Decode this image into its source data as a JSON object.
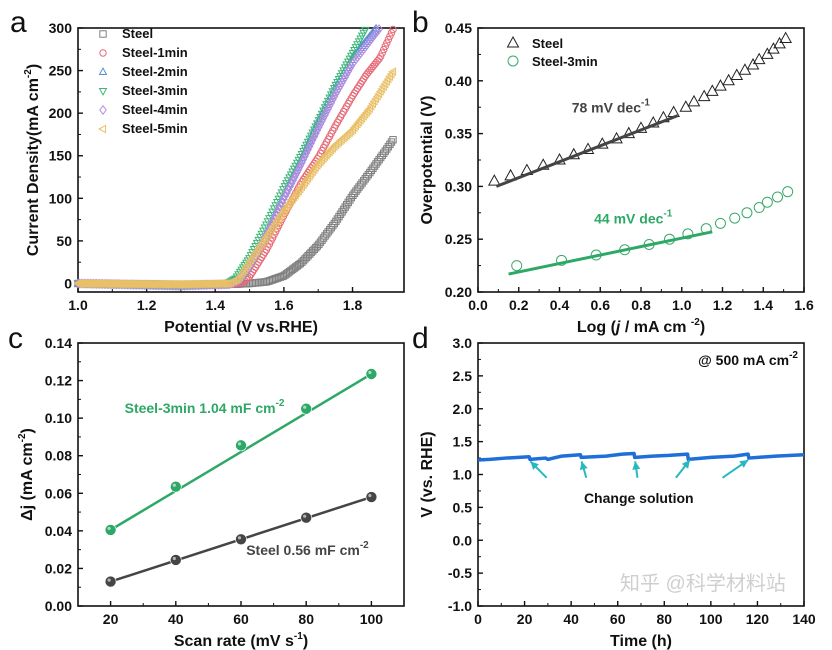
{
  "watermark": "知乎 @科学材料站",
  "chart_data": [
    {
      "panel": "a",
      "type": "scatter",
      "xlabel": [
        [
          "Potential (V vs.RHE)",
          ""
        ]
      ],
      "ylabel": [
        [
          "Current Density(mA cm",
          ""
        ],
        [
          "-2",
          "sup"
        ],
        [
          ")",
          ""
        ]
      ],
      "xlim": [
        1.0,
        1.95
      ],
      "ylim": [
        -10,
        300
      ],
      "xticks": [
        "1.0",
        "1.2",
        "1.4",
        "1.6",
        "1.8"
      ],
      "yticks": [
        "0",
        "50",
        "100",
        "150",
        "200",
        "250",
        "300"
      ],
      "legend": "top-left",
      "series": [
        {
          "name": "Steel",
          "marker": "square",
          "color": "#808080",
          "points": [
            [
              1.0,
              0
            ],
            [
              1.3,
              -1
            ],
            [
              1.45,
              -1
            ],
            [
              1.5,
              0
            ],
            [
              1.55,
              2
            ],
            [
              1.6,
              9
            ],
            [
              1.65,
              24
            ],
            [
              1.7,
              45
            ],
            [
              1.75,
              72
            ],
            [
              1.8,
              103
            ],
            [
              1.85,
              130
            ],
            [
              1.9,
              158
            ],
            [
              1.92,
              170
            ]
          ]
        },
        {
          "name": "Steel-1min",
          "marker": "circle",
          "color": "#e66a78",
          "points": [
            [
              1.0,
              0
            ],
            [
              1.3,
              -1
            ],
            [
              1.45,
              -1
            ],
            [
              1.48,
              1
            ],
            [
              1.5,
              8
            ],
            [
              1.55,
              40
            ],
            [
              1.6,
              80
            ],
            [
              1.65,
              118
            ],
            [
              1.7,
              148
            ],
            [
              1.75,
              185
            ],
            [
              1.8,
              220
            ],
            [
              1.84,
              245
            ],
            [
              1.88,
              265
            ],
            [
              1.92,
              300
            ]
          ]
        },
        {
          "name": "Steel-2min",
          "marker": "triangle-up",
          "color": "#5b8fd6",
          "points": [
            [
              1.0,
              0
            ],
            [
              1.3,
              -2
            ],
            [
              1.44,
              -1
            ],
            [
              1.47,
              5
            ],
            [
              1.5,
              22
            ],
            [
              1.55,
              60
            ],
            [
              1.6,
              103
            ],
            [
              1.65,
              145
            ],
            [
              1.7,
              190
            ],
            [
              1.75,
              230
            ],
            [
              1.8,
              265
            ],
            [
              1.87,
              300
            ]
          ]
        },
        {
          "name": "Steel-3min",
          "marker": "triangle-down",
          "color": "#3cb878",
          "points": [
            [
              1.0,
              0
            ],
            [
              1.3,
              -3
            ],
            [
              1.43,
              -1
            ],
            [
              1.46,
              6
            ],
            [
              1.5,
              30
            ],
            [
              1.55,
              70
            ],
            [
              1.6,
              112
            ],
            [
              1.65,
              150
            ],
            [
              1.7,
              190
            ],
            [
              1.75,
              232
            ],
            [
              1.8,
              270
            ],
            [
              1.84,
              300
            ]
          ]
        },
        {
          "name": "Steel-4min",
          "marker": "diamond",
          "color": "#b58be0",
          "points": [
            [
              1.0,
              0
            ],
            [
              1.3,
              -2
            ],
            [
              1.44,
              -1
            ],
            [
              1.47,
              4
            ],
            [
              1.5,
              20
            ],
            [
              1.55,
              58
            ],
            [
              1.6,
              100
            ],
            [
              1.65,
              140
            ],
            [
              1.7,
              182
            ],
            [
              1.75,
              222
            ],
            [
              1.8,
              258
            ],
            [
              1.88,
              300
            ]
          ]
        },
        {
          "name": "Steel-5min",
          "marker": "triangle-left",
          "color": "#e8c066",
          "points": [
            [
              1.0,
              0
            ],
            [
              1.3,
              -1
            ],
            [
              1.44,
              0
            ],
            [
              1.47,
              6
            ],
            [
              1.5,
              25
            ],
            [
              1.55,
              55
            ],
            [
              1.6,
              85
            ],
            [
              1.65,
              112
            ],
            [
              1.7,
              140
            ],
            [
              1.75,
              162
            ],
            [
              1.8,
              180
            ],
            [
              1.85,
              205
            ],
            [
              1.92,
              250
            ]
          ]
        }
      ]
    },
    {
      "panel": "b",
      "type": "scatter",
      "xlabel": [
        [
          "Log (",
          ""
        ],
        [
          "j",
          "i"
        ],
        [
          " / mA cm ",
          ""
        ],
        [
          "-2",
          "sup"
        ],
        [
          ")",
          ""
        ]
      ],
      "ylabel": [
        [
          "Overpotential (V)",
          ""
        ]
      ],
      "xlim": [
        0.0,
        1.6
      ],
      "ylim": [
        0.2,
        0.45
      ],
      "xticks": [
        "0.0",
        "0.2",
        "0.4",
        "0.6",
        "0.8",
        "1.0",
        "1.2",
        "1.4",
        "1.6"
      ],
      "yticks": [
        "0.20",
        "0.25",
        "0.30",
        "0.35",
        "0.40",
        "0.45"
      ],
      "legend": "top-left",
      "series": [
        {
          "name": "Steel",
          "marker": "triangle-up",
          "color": "#222222",
          "x": [
            0.08,
            0.16,
            0.24,
            0.32,
            0.4,
            0.47,
            0.54,
            0.61,
            0.68,
            0.74,
            0.8,
            0.86,
            0.91,
            0.96,
            1.02,
            1.06,
            1.11,
            1.15,
            1.19,
            1.23,
            1.27,
            1.31,
            1.35,
            1.38,
            1.42,
            1.45,
            1.48,
            1.51
          ],
          "y": [
            0.305,
            0.31,
            0.315,
            0.32,
            0.325,
            0.33,
            0.335,
            0.34,
            0.345,
            0.35,
            0.355,
            0.36,
            0.365,
            0.37,
            0.375,
            0.38,
            0.385,
            0.39,
            0.395,
            0.4,
            0.405,
            0.41,
            0.415,
            0.42,
            0.425,
            0.43,
            0.435,
            0.44
          ],
          "fit": {
            "x": [
              0.09,
              0.98
            ],
            "y": [
              0.3,
              0.367
            ],
            "color": "#444444",
            "label": [
              [
                "78 mV dec",
                ""
              ],
              [
                "-1",
                "sup"
              ]
            ],
            "label_at": [
              0.46,
              0.37
            ]
          }
        },
        {
          "name": "Steel-3min",
          "marker": "circle",
          "color": "#3aa86a",
          "x": [
            0.19,
            0.41,
            0.58,
            0.72,
            0.84,
            0.94,
            1.03,
            1.12,
            1.19,
            1.26,
            1.32,
            1.38,
            1.42,
            1.47,
            1.52
          ],
          "y": [
            0.225,
            0.23,
            0.235,
            0.24,
            0.245,
            0.25,
            0.255,
            0.26,
            0.265,
            0.27,
            0.275,
            0.28,
            0.285,
            0.29,
            0.295
          ],
          "fit": {
            "x": [
              0.15,
              1.15
            ],
            "y": [
              0.217,
              0.257
            ],
            "color": "#2ea866",
            "label": [
              [
                "44 mV dec",
                ""
              ],
              [
                "-1",
                "sup"
              ]
            ],
            "label_at": [
              0.57,
              0.265
            ]
          }
        }
      ]
    },
    {
      "panel": "c",
      "type": "line",
      "xlabel": [
        [
          "Scan rate (mV s",
          ""
        ],
        [
          "-1",
          "sup"
        ],
        [
          ")",
          ""
        ]
      ],
      "ylabel": [
        [
          "Δj (mA cm",
          ""
        ],
        [
          "-2",
          "sup"
        ],
        [
          ")",
          ""
        ]
      ],
      "xlim": [
        10,
        110
      ],
      "ylim": [
        0,
        0.14
      ],
      "xticks": [
        "20",
        "40",
        "60",
        "80",
        "100"
      ],
      "yticks": [
        "0.00",
        "0.02",
        "0.04",
        "0.06",
        "0.08",
        "0.10",
        "0.12",
        "0.14"
      ],
      "categories": [
        20,
        40,
        60,
        80,
        100
      ],
      "series": [
        {
          "name": "Steel-3min",
          "color": "#2ea866",
          "values": [
            0.0405,
            0.0635,
            0.0855,
            0.105,
            0.1235
          ],
          "label": [
            [
              "Steel-3min 1.04 mF cm",
              ""
            ],
            [
              "-2",
              "sup"
            ]
          ],
          "label_at": [
            24.3,
            0.1027
          ]
        },
        {
          "name": "Steel",
          "color": "#454545",
          "values": [
            0.013,
            0.0245,
            0.0355,
            0.047,
            0.058
          ],
          "label": [
            [
              "Steel  0.56 mF cm",
              ""
            ],
            [
              "-2",
              "sup"
            ]
          ],
          "label_at": [
            61.6,
            0.0271
          ]
        }
      ]
    },
    {
      "panel": "d",
      "type": "line",
      "xlabel": [
        [
          "Time (h)",
          ""
        ]
      ],
      "ylabel": [
        [
          "V (vs. RHE)",
          ""
        ]
      ],
      "xlim": [
        0,
        140
      ],
      "ylim": [
        -1.0,
        3.0
      ],
      "xticks": [
        "0",
        "20",
        "40",
        "60",
        "80",
        "100",
        "120",
        "140"
      ],
      "yticks": [
        "-1.0",
        "-0.5",
        "0.0",
        "0.5",
        "1.0",
        "1.5",
        "2.0",
        "2.5",
        "3.0"
      ],
      "series": [
        {
          "color": "#1f6fd8",
          "points": [
            [
              0,
              1.22
            ],
            [
              5,
              1.23
            ],
            [
              12,
              1.25
            ],
            [
              22,
              1.27
            ],
            [
              22.3,
              1.23
            ],
            [
              29,
              1.25
            ],
            [
              30,
              1.23
            ],
            [
              36,
              1.28
            ],
            [
              44,
              1.3
            ],
            [
              44.3,
              1.26
            ],
            [
              55,
              1.28
            ],
            [
              62,
              1.31
            ],
            [
              67,
              1.32
            ],
            [
              67.3,
              1.26
            ],
            [
              75,
              1.28
            ],
            [
              82,
              1.29
            ],
            [
              90,
              1.31
            ],
            [
              90.3,
              1.23
            ],
            [
              100,
              1.26
            ],
            [
              110,
              1.28
            ],
            [
              116,
              1.31
            ],
            [
              116.3,
              1.25
            ],
            [
              128,
              1.28
            ],
            [
              140,
              1.3
            ]
          ]
        }
      ],
      "annotations": {
        "condition": [
          [
            "@ 500 mA cm",
            ""
          ],
          [
            "-2",
            "sup"
          ]
        ],
        "note": "Change solution",
        "note_at": [
          45.5,
          0.57
        ],
        "arrow_color": "#27b8c0",
        "arrows": [
          {
            "from": [
              29.5,
              0.95
            ],
            "to": [
              22.5,
              1.2
            ]
          },
          {
            "from": [
              46.5,
              0.95
            ],
            "to": [
              44.5,
              1.2
            ]
          },
          {
            "from": [
              68.5,
              0.95
            ],
            "to": [
              67.5,
              1.2
            ]
          },
          {
            "from": [
              85,
              0.95
            ],
            "to": [
              91,
              1.22
            ]
          },
          {
            "from": [
              105,
              0.95
            ],
            "to": [
              116,
              1.22
            ]
          }
        ]
      }
    }
  ]
}
